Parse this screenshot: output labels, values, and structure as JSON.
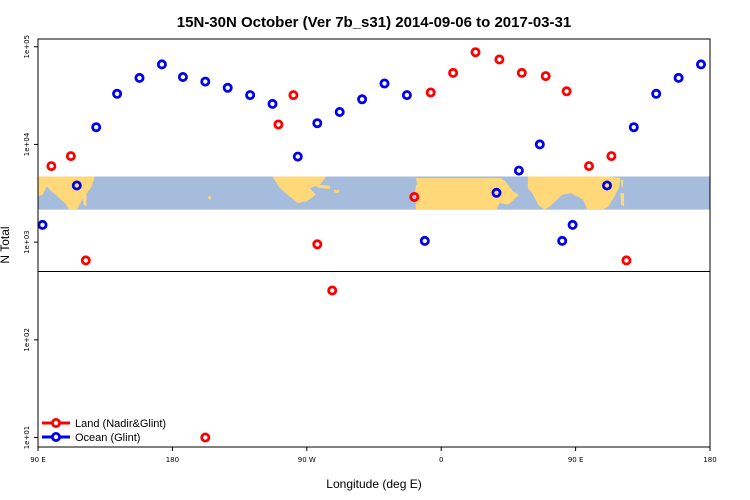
{
  "chart_data": {
    "type": "scatter",
    "title": "15N-30N October (Ver 7b_s31)   2014-09-06 to 2017-03-31",
    "xlabel": "Longitude (deg E)",
    "ylabel": "N Total",
    "xscale": "linear",
    "yscale": "log",
    "xlim": [
      90,
      540
    ],
    "ylim": [
      8,
      120000
    ],
    "x_ticks": [
      {
        "value": 90,
        "label": "90 E"
      },
      {
        "value": 180,
        "label": "180"
      },
      {
        "value": 270,
        "label": "90 W"
      },
      {
        "value": 360,
        "label": "0"
      },
      {
        "value": 450,
        "label": "90 E"
      },
      {
        "value": 540,
        "label": "180"
      }
    ],
    "y_ticks": [
      {
        "value": 10,
        "label": "1e+01"
      },
      {
        "value": 100,
        "label": "1e+02"
      },
      {
        "value": 1000,
        "label": "1e+03"
      },
      {
        "value": 10000,
        "label": "1e+04"
      },
      {
        "value": 100000,
        "label": "1e+05"
      }
    ],
    "reference_line": {
      "y": 500
    },
    "map_strip": {
      "y_top": 4700,
      "y_bottom": 2150
    },
    "legend_position": "bottom-left",
    "series": [
      {
        "name": "Land (Nadir&Glint)",
        "color": "#ff0000",
        "points": [
          {
            "x": 99,
            "y": 6000
          },
          {
            "x": 112,
            "y": 7600
          },
          {
            "x": 122,
            "y": 650
          },
          {
            "x": 202,
            "y": 10
          },
          {
            "x": 251,
            "y": 16000
          },
          {
            "x": 261,
            "y": 32000
          },
          {
            "x": 277,
            "y": 950
          },
          {
            "x": 287,
            "y": 320
          },
          {
            "x": 342,
            "y": 2900
          },
          {
            "x": 353,
            "y": 34000
          },
          {
            "x": 368,
            "y": 54000
          },
          {
            "x": 383,
            "y": 88000
          },
          {
            "x": 399,
            "y": 74000
          },
          {
            "x": 414,
            "y": 54000
          },
          {
            "x": 430,
            "y": 50000
          },
          {
            "x": 444,
            "y": 35000
          },
          {
            "x": 459,
            "y": 6000
          },
          {
            "x": 474,
            "y": 7600
          },
          {
            "x": 484,
            "y": 650
          }
        ]
      },
      {
        "name": "Ocean (Glint)",
        "color": "#0000ee",
        "points": [
          {
            "x": 93,
            "y": 1500
          },
          {
            "x": 116,
            "y": 3800
          },
          {
            "x": 129,
            "y": 15000
          },
          {
            "x": 143,
            "y": 33000
          },
          {
            "x": 158,
            "y": 48000
          },
          {
            "x": 173,
            "y": 66000
          },
          {
            "x": 187,
            "y": 49000
          },
          {
            "x": 202,
            "y": 44000
          },
          {
            "x": 217,
            "y": 38000
          },
          {
            "x": 232,
            "y": 32000
          },
          {
            "x": 247,
            "y": 26000
          },
          {
            "x": 264,
            "y": 7500
          },
          {
            "x": 277,
            "y": 16500
          },
          {
            "x": 292,
            "y": 21500
          },
          {
            "x": 307,
            "y": 29000
          },
          {
            "x": 322,
            "y": 42000
          },
          {
            "x": 337,
            "y": 32000
          },
          {
            "x": 349,
            "y": 1030
          },
          {
            "x": 397,
            "y": 3200
          },
          {
            "x": 412,
            "y": 5400
          },
          {
            "x": 426,
            "y": 10000
          },
          {
            "x": 441,
            "y": 1030
          },
          {
            "x": 448,
            "y": 1500
          },
          {
            "x": 471,
            "y": 3800
          },
          {
            "x": 489,
            "y": 15000
          },
          {
            "x": 504,
            "y": 33000
          },
          {
            "x": 519,
            "y": 48000
          },
          {
            "x": 534,
            "y": 66000
          }
        ]
      }
    ]
  }
}
